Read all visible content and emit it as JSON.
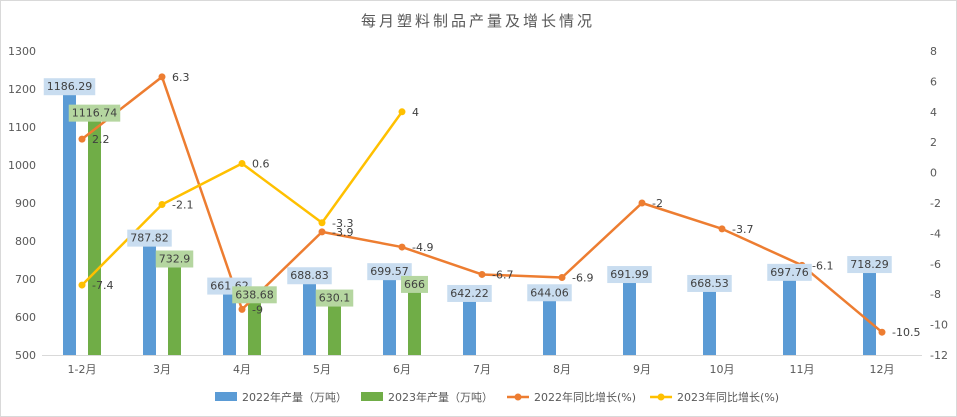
{
  "chart_data": {
    "type": "bar",
    "title": "每月塑料制品产量及增长情况",
    "categories": [
      "1-2月",
      "3月",
      "4月",
      "5月",
      "6月",
      "7月",
      "8月",
      "9月",
      "10月",
      "11月",
      "12月"
    ],
    "series": [
      {
        "name": "2022年产量（万吨）",
        "type": "bar",
        "axis": "left",
        "color": "#5b9bd5",
        "values": [
          1186.29,
          787.82,
          661.62,
          688.83,
          699.57,
          642.22,
          644.06,
          691.99,
          668.53,
          697.76,
          718.29
        ]
      },
      {
        "name": "2023年产量（万吨）",
        "type": "bar",
        "axis": "left",
        "color": "#70ad47",
        "values": [
          1116.74,
          732.9,
          638.68,
          630.1,
          666,
          null,
          null,
          null,
          null,
          null,
          null
        ]
      },
      {
        "name": "2022年同比增长(%)",
        "type": "line",
        "axis": "right",
        "color": "#ed7d31",
        "values": [
          2.2,
          6.3,
          -9,
          -3.9,
          -4.9,
          -6.7,
          -6.9,
          -2,
          -3.7,
          -6.1,
          -10.5
        ]
      },
      {
        "name": "2023年同比增长(%)",
        "type": "line",
        "axis": "right",
        "color": "#ffc000",
        "values": [
          -7.4,
          -2.1,
          0.6,
          -3.3,
          4,
          null,
          null,
          null,
          null,
          null,
          null
        ]
      }
    ],
    "y_left": {
      "min": 500,
      "max": 1300,
      "ticks": [
        500,
        600,
        700,
        800,
        900,
        1000,
        1100,
        1200,
        1300
      ]
    },
    "y_right": {
      "min": -12,
      "max": 8,
      "ticks": [
        -12,
        -10,
        -8,
        -6,
        -4,
        -2,
        0,
        2,
        4,
        6,
        8
      ]
    },
    "grid": false,
    "legend_position": "bottom"
  }
}
